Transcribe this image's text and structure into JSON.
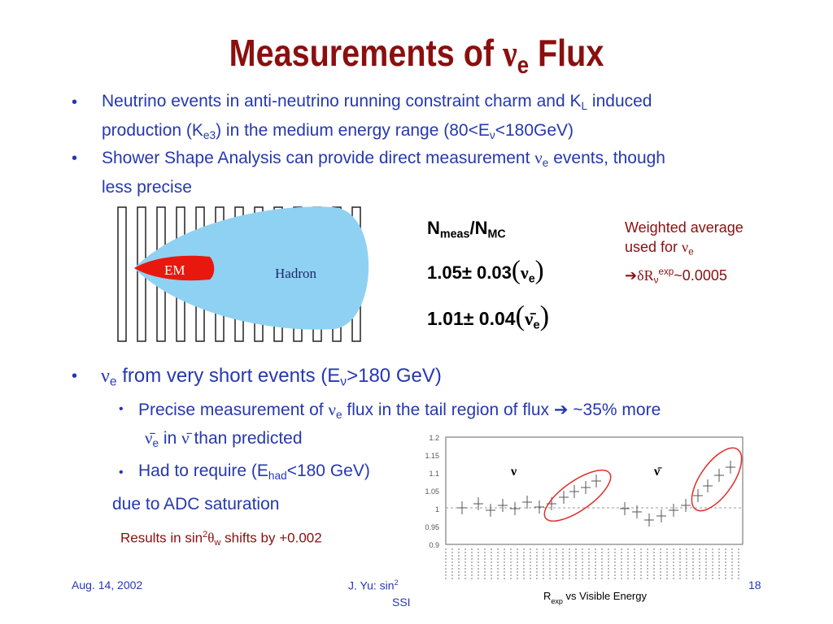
{
  "title": [
    "Measurements of ",
    "ν",
    {
      "sub": "e"
    },
    " Flux"
  ],
  "bullets_top": [
    [
      "Neutrino events in anti-neutrino running constraint charm and K",
      {
        "sub": "L"
      },
      " induced production (K",
      {
        "sub": "e3"
      },
      ") in the medium energy range (80<E",
      {
        "sub": "ν"
      },
      "<180GeV)"
    ],
    [
      "Shower Shape Analysis can provide direct measurement ",
      "ν",
      {
        "sub": "e"
      },
      " events, though less precise"
    ]
  ],
  "diagram": {
    "em": "EM",
    "hadron": "Hadron"
  },
  "ratio": {
    "header": [
      "N",
      {
        "sub": "meas"
      },
      "/N",
      {
        "sub": "MC"
      }
    ],
    "rows": [
      [
        "1.05",
        "±",
        " 0.03",
        "(",
        "ν",
        {
          "sub": "e"
        },
        ")"
      ],
      [
        "1.01",
        "±",
        " 0.04",
        "(",
        "ν̄",
        {
          "sub": "e"
        },
        ")"
      ]
    ]
  },
  "note": [
    [
      "Weighted average"
    ],
    [
      "used for ",
      "ν",
      {
        "sub": "e"
      }
    ],
    [
      "➔",
      "δR",
      {
        "sub": "ν"
      },
      {
        "sup": "exp"
      },
      "~0.0005"
    ]
  ],
  "bullet_main": [
    "ν",
    {
      "sub": "e"
    },
    " from very short events (E",
    {
      "sub": "ν"
    },
    ">180 GeV)"
  ],
  "sub_bullets": [
    [
      "Precise measurement of ",
      "ν",
      {
        "sub": "e"
      },
      " flux in the tail region of flux ",
      "➔",
      " ~35% more"
    ],
    [
      "ν̄",
      {
        "sub": "e"
      },
      " in ",
      "ν̄",
      " than predicted"
    ],
    [
      "Had to require (E",
      {
        "sub": "had"
      },
      "<180 GeV)"
    ]
  ],
  "plain_line": [
    "due to ADC saturation"
  ],
  "result_line": [
    "Results in sin",
    {
      "sup": "2"
    },
    "θ",
    {
      "sub": "w"
    },
    " shifts by +0.002"
  ],
  "plot": {
    "yticks": [
      "1.2",
      "1.15",
      "1.1",
      "1.05",
      "1",
      "0.95",
      "0.9"
    ],
    "nu": "ν",
    "nubar": "ν̄",
    "xlabel": [
      "R",
      {
        "sub": "exp"
      },
      " vs Visible Energy"
    ]
  },
  "footer": {
    "date": "Aug. 14, 2002",
    "author": [
      "J. Yu: sin",
      {
        "sup": "2"
      }
    ],
    "event": "SSI",
    "page": "18"
  }
}
